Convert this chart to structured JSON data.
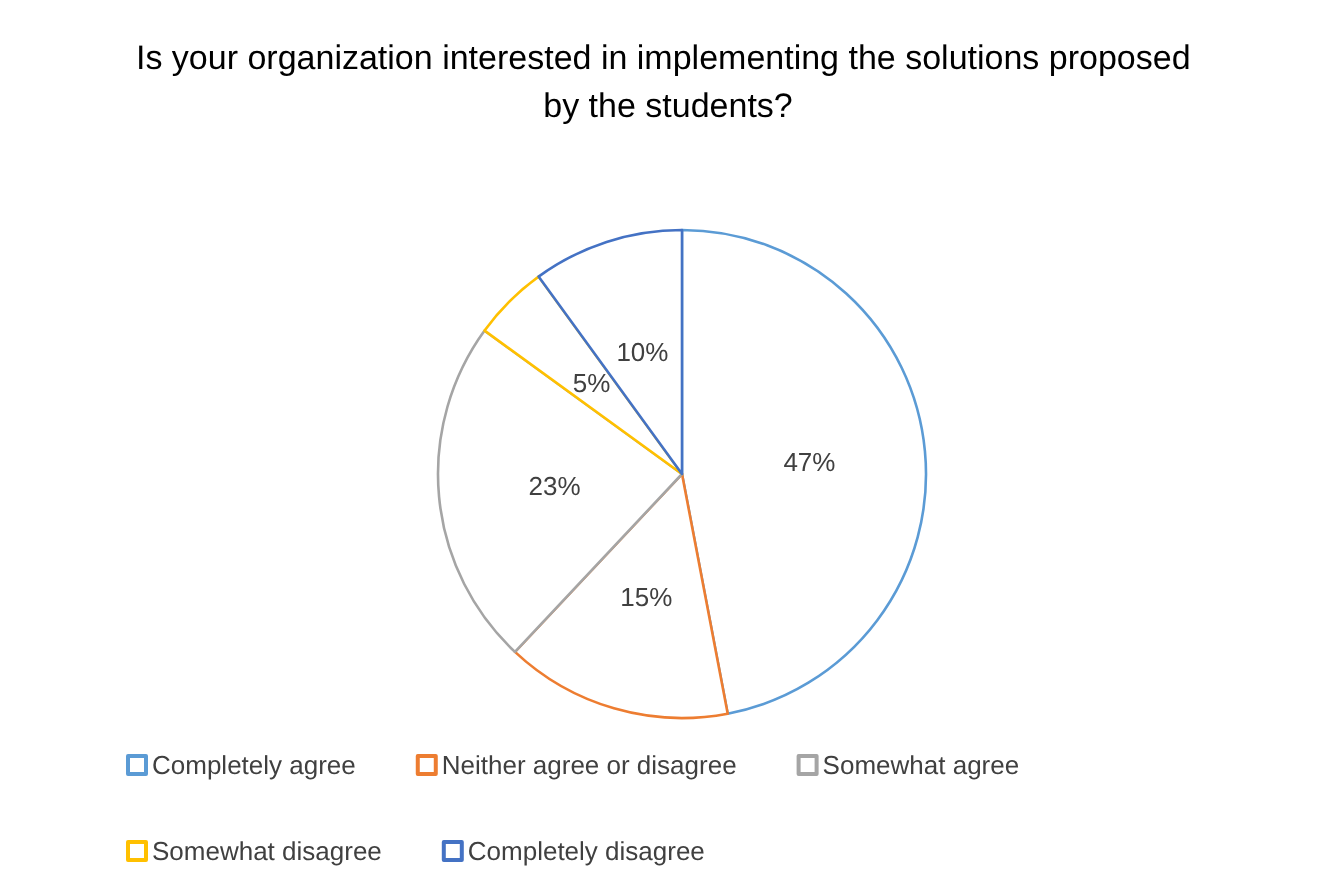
{
  "chart_data": {
    "type": "pie",
    "title": "Is your organization interested in implementing the solutions proposed by the students?",
    "categories": [
      "Completely agree",
      "Neither agree or disagree",
      "Somewhat agree",
      "Somewhat disagree",
      "Completely disagree"
    ],
    "values": [
      47,
      15,
      23,
      5,
      10
    ],
    "colors": [
      "#5b9bd5",
      "#ed7d31",
      "#a5a5a5",
      "#ffc000",
      "#4472c4"
    ],
    "value_labels": [
      "47%",
      "15%",
      "23%",
      "5%",
      "10%"
    ],
    "legend": "bottom"
  }
}
